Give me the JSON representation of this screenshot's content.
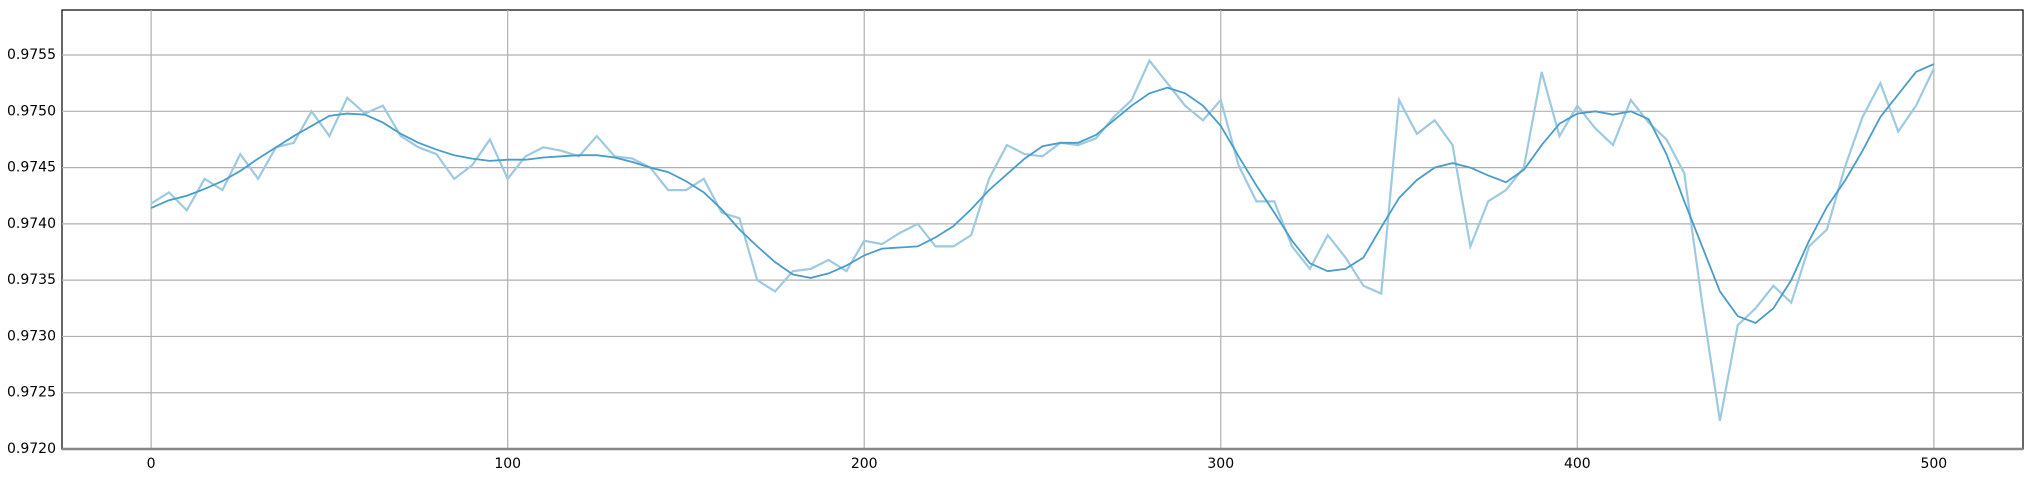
{
  "chart_data": {
    "type": "line",
    "x": [
      0,
      5,
      10,
      15,
      20,
      25,
      30,
      35,
      40,
      45,
      50,
      55,
      60,
      65,
      70,
      75,
      80,
      85,
      90,
      95,
      100,
      105,
      110,
      115,
      120,
      125,
      130,
      135,
      140,
      145,
      150,
      155,
      160,
      165,
      170,
      175,
      180,
      185,
      190,
      195,
      200,
      205,
      210,
      215,
      220,
      225,
      230,
      235,
      240,
      245,
      250,
      255,
      260,
      265,
      270,
      275,
      280,
      285,
      290,
      295,
      300,
      305,
      310,
      315,
      320,
      325,
      330,
      335,
      340,
      345,
      350,
      355,
      360,
      365,
      370,
      375,
      380,
      385,
      390,
      395,
      400,
      405,
      410,
      415,
      420,
      425,
      430,
      435,
      440,
      445,
      450,
      455,
      460,
      465,
      470,
      475,
      480,
      485,
      490,
      495,
      500
    ],
    "series": [
      {
        "color": "#9ecae1",
        "values": [
          0.97418,
          0.97428,
          0.97412,
          0.9744,
          0.9743,
          0.97462,
          0.9744,
          0.97468,
          0.97472,
          0.975,
          0.97478,
          0.97512,
          0.97498,
          0.97505,
          0.97478,
          0.97468,
          0.97462,
          0.9744,
          0.97452,
          0.97475,
          0.9744,
          0.9746,
          0.97468,
          0.97465,
          0.9746,
          0.97478,
          0.9746,
          0.97458,
          0.9745,
          0.9743,
          0.9743,
          0.9744,
          0.9741,
          0.97405,
          0.9735,
          0.9734,
          0.97358,
          0.9736,
          0.97368,
          0.97358,
          0.97385,
          0.97382,
          0.97392,
          0.974,
          0.9738,
          0.9738,
          0.9739,
          0.9744,
          0.9747,
          0.97462,
          0.9746,
          0.97472,
          0.9747,
          0.97476,
          0.97495,
          0.9751,
          0.97545,
          0.97525,
          0.97505,
          0.97492,
          0.9751,
          0.97452,
          0.9742,
          0.9742,
          0.9738,
          0.9736,
          0.9739,
          0.9737,
          0.97345,
          0.97338,
          0.9751,
          0.9748,
          0.97492,
          0.9747,
          0.9738,
          0.9742,
          0.9743,
          0.9745,
          0.97535,
          0.97478,
          0.97505,
          0.97485,
          0.9747,
          0.9751,
          0.9749,
          0.97475,
          0.97445,
          0.9733,
          0.97225,
          0.9731,
          0.97325,
          0.97345,
          0.9733,
          0.9738,
          0.97395,
          0.9745,
          0.97495,
          0.97525,
          0.97482,
          0.97505,
          0.97538
        ]
      },
      {
        "color": "#4a9cc9",
        "values": [
          0.97414,
          0.97421,
          0.97425,
          0.97431,
          0.97438,
          0.97447,
          0.97458,
          0.97468,
          0.97478,
          0.97487,
          0.97496,
          0.97498,
          0.97497,
          0.9749,
          0.9748,
          0.97472,
          0.97466,
          0.97461,
          0.97458,
          0.97456,
          0.97457,
          0.97457,
          0.97459,
          0.9746,
          0.97461,
          0.97461,
          0.97459,
          0.97455,
          0.9745,
          0.97446,
          0.97438,
          0.97428,
          0.97413,
          0.97395,
          0.9738,
          0.97366,
          0.97355,
          0.97352,
          0.97356,
          0.97363,
          0.97372,
          0.97378,
          0.97379,
          0.9738,
          0.97388,
          0.97398,
          0.97413,
          0.9743,
          0.97444,
          0.97458,
          0.97469,
          0.97472,
          0.97472,
          0.97479,
          0.97492,
          0.97505,
          0.97516,
          0.97521,
          0.97516,
          0.97505,
          0.97487,
          0.9746,
          0.97434,
          0.9741,
          0.97385,
          0.97365,
          0.97358,
          0.9736,
          0.9737,
          0.97397,
          0.97423,
          0.97439,
          0.9745,
          0.97454,
          0.9745,
          0.97443,
          0.97437,
          0.97448,
          0.9747,
          0.97489,
          0.97498,
          0.975,
          0.97497,
          0.975,
          0.97493,
          0.97462,
          0.9742,
          0.9738,
          0.9734,
          0.97318,
          0.97312,
          0.97325,
          0.9735,
          0.97385,
          0.97415,
          0.97438,
          0.97465,
          0.97495,
          0.97515,
          0.97535,
          0.97542
        ]
      }
    ],
    "xlim": [
      -25,
      525
    ],
    "xticks": [
      0,
      100,
      200,
      300,
      400,
      500
    ],
    "ylim": [
      0.972,
      0.9759
    ],
    "yticks": [
      {
        "value": 0.972,
        "label": "0.9720"
      },
      0.9725,
      {
        "value": 0.973,
        "label": "0.9730"
      },
      0.9735,
      {
        "value": 0.974,
        "label": "0.9740"
      },
      0.9745,
      {
        "value": 0.975,
        "label": "0.9750"
      },
      0.9755
    ],
    "grid": true
  }
}
